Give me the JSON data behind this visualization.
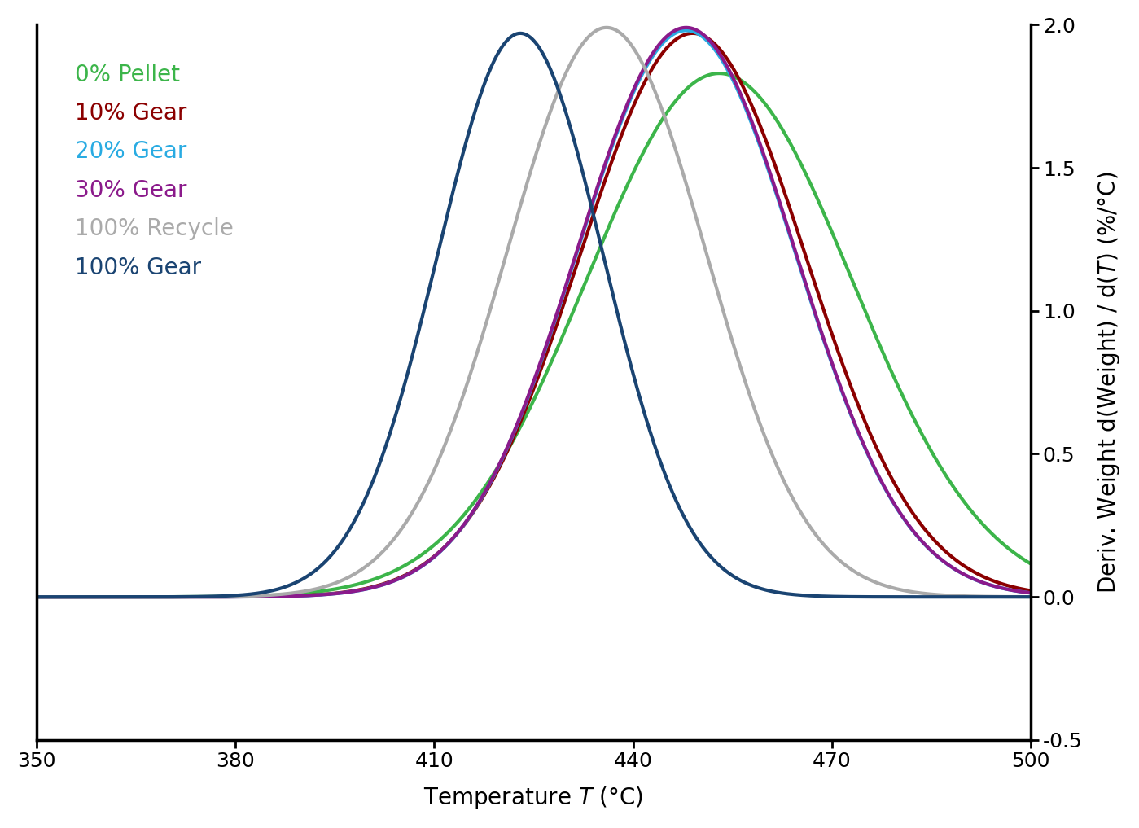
{
  "series": [
    {
      "label": "0% Pellet",
      "color": "#3cb54a",
      "peak_temp": 453,
      "sigma": 20,
      "amplitude": 1.83
    },
    {
      "label": "10% Gear",
      "color": "#8b0000",
      "peak_temp": 449,
      "sigma": 17,
      "amplitude": 1.97
    },
    {
      "label": "20% Gear",
      "color": "#29abe2",
      "peak_temp": 448,
      "sigma": 16.5,
      "amplitude": 1.98
    },
    {
      "label": "30% Gear",
      "color": "#8b1a8b",
      "peak_temp": 448,
      "sigma": 16.5,
      "amplitude": 1.99
    },
    {
      "label": "100% Recycle",
      "color": "#aaaaaa",
      "peak_temp": 436,
      "sigma": 15,
      "amplitude": 1.99
    },
    {
      "label": "100% Gear",
      "color": "#1a4472",
      "peak_temp": 423,
      "sigma": 12.5,
      "amplitude": 1.97
    }
  ],
  "xlim": [
    350,
    500
  ],
  "ylim": [
    -0.5,
    2.0
  ],
  "xticks": [
    350,
    380,
    410,
    440,
    470,
    500
  ],
  "ytick_vals": [
    -0.5,
    0.0,
    0.5,
    1.0,
    1.5,
    2.0
  ],
  "ytick_labels": [
    "-0.5",
    "0.0",
    "0.5",
    "1.0",
    "1.5",
    "2.0"
  ],
  "legend_fontsize": 20,
  "axis_fontsize": 20,
  "tick_fontsize": 18,
  "linewidth": 3.0,
  "spine_linewidth": 2.5,
  "figsize": [
    13.99,
    10.17
  ],
  "dpi": 100
}
